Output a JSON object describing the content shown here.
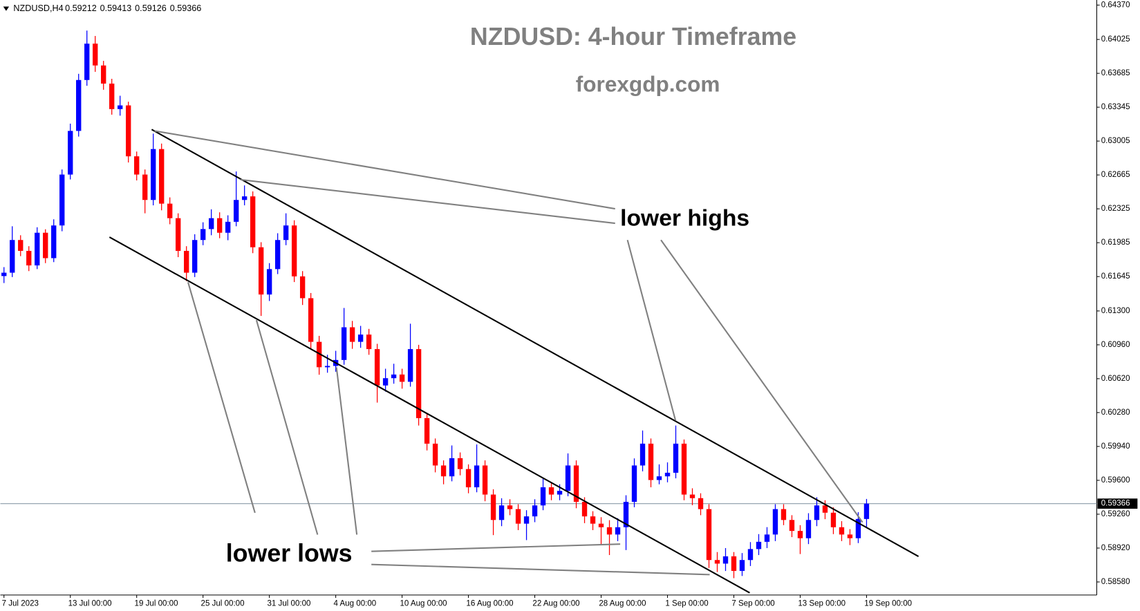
{
  "chart_data": {
    "type": "candlestick",
    "symbol": "NZDUSD,H4",
    "title": "NZDUSD: 4-hour Timeframe",
    "subtitle": "forexgdp.com",
    "annotations": [
      "lower highs",
      "lower lows"
    ],
    "categories": [
      "7 Jul 2023",
      null,
      null,
      null,
      null,
      null,
      null,
      null,
      "13 Jul 00:00",
      null,
      null,
      null,
      null,
      null,
      null,
      null,
      "19 Jul 00:00",
      null,
      null,
      null,
      null,
      null,
      null,
      null,
      "25 Jul 00:00",
      null,
      null,
      null,
      null,
      null,
      null,
      null,
      "31 Jul 00:00",
      null,
      null,
      null,
      null,
      null,
      null,
      null,
      "4 Aug 00:00",
      null,
      null,
      null,
      null,
      null,
      null,
      null,
      "10 Aug 00:00",
      null,
      null,
      null,
      null,
      null,
      null,
      null,
      "16 Aug 00:00",
      null,
      null,
      null,
      null,
      null,
      null,
      null,
      "22 Aug 00:00",
      null,
      null,
      null,
      null,
      null,
      null,
      null,
      "28 Aug 00:00",
      null,
      null,
      null,
      null,
      null,
      null,
      null,
      "1 Sep 00:00",
      null,
      null,
      null,
      null,
      null,
      null,
      null,
      "7 Sep 00:00",
      null,
      null,
      null,
      null,
      null,
      null,
      null,
      "13 Sep 00:00",
      null,
      null,
      null,
      null,
      null,
      null,
      null,
      "19 Sep 00:00"
    ],
    "open": [
      0.6165,
      0.61684,
      0.62012,
      0.61903,
      0.61757,
      0.62085,
      0.6183,
      0.62158,
      0.62669,
      0.63107,
      0.63618,
      0.63983,
      0.63764,
      0.63582,
      0.63326,
      0.63363,
      0.62852,
      0.62669,
      0.62414,
      0.62925,
      0.62377,
      0.62231,
      0.61903,
      0.61684,
      0.62012,
      0.62122,
      0.62231,
      0.62085,
      0.62195,
      0.62414,
      0.6245,
      0.61939,
      0.61465,
      0.6172,
      0.62012,
      0.62158,
      0.61647,
      0.61428,
      0.6099,
      0.60735,
      0.60748,
      0.60808,
      0.61136,
      0.6099,
      0.61063,
      0.60917,
      0.60552,
      0.60625,
      0.60662,
      0.60589,
      0.60917,
      0.60224,
      0.59968,
      0.59749,
      0.5964,
      0.59822,
      0.59713,
      0.5953,
      0.59749,
      0.59457,
      0.59202,
      0.59348,
      0.59311,
      0.59165,
      0.59238,
      0.59348,
      0.5953,
      0.59457,
      0.59494,
      0.59749,
      0.59384,
      0.59238,
      0.59165,
      0.59129,
      0.59056,
      0.59129,
      0.59384,
      0.59749,
      0.59968,
      0.59603,
      0.5964,
      0.59676,
      0.59968,
      0.59457,
      0.59421,
      0.59311,
      0.588,
      0.58764,
      0.58837,
      0.58691,
      0.588,
      0.5891,
      0.58983,
      0.59056,
      0.59311,
      0.59202,
      0.59092,
      0.59019,
      0.59202,
      0.59348,
      0.59275,
      0.59129,
      0.59056,
      0.59019,
      0.59212
    ],
    "high": [
      0.6174,
      0.6215,
      0.6206,
      0.6195,
      0.6214,
      0.6212,
      0.6222,
      0.6272,
      0.6318,
      0.6368,
      0.64114,
      0.6406,
      0.6381,
      0.6363,
      0.6346,
      0.634,
      0.629,
      0.6272,
      0.6308,
      0.6298,
      0.6244,
      0.6228,
      0.6195,
      0.6207,
      0.6219,
      0.6232,
      0.6229,
      0.6226,
      0.627,
      0.6256,
      0.625,
      0.6199,
      0.6178,
      0.6208,
      0.6228,
      0.6221,
      0.617,
      0.6148,
      0.6105,
      0.6086,
      0.609,
      0.6133,
      0.612,
      0.6115,
      0.6112,
      0.6097,
      0.6072,
      0.6077,
      0.6072,
      0.61172,
      0.6096,
      0.6027,
      0.6002,
      0.598,
      0.5995,
      0.5988,
      0.5976,
      0.5996,
      0.598,
      0.5951,
      0.5942,
      0.5941,
      0.5936,
      0.593,
      0.5941,
      0.5962,
      0.5958,
      0.5956,
      0.5987,
      0.598,
      0.5943,
      0.5929,
      0.5923,
      0.592,
      0.5922,
      0.5945,
      0.5982,
      0.601,
      0.6002,
      0.5976,
      0.5978,
      0.6015,
      0.6001,
      0.5952,
      0.5947,
      0.5936,
      0.5888,
      0.5892,
      0.5888,
      0.5887,
      0.5898,
      0.5906,
      0.5913,
      0.5936,
      0.5936,
      0.5925,
      0.5915,
      0.5927,
      0.5943,
      0.594,
      0.5933,
      0.5919,
      0.5911,
      0.5928,
      0.59413
    ],
    "low": [
      0.6158,
      0.6164,
      0.6185,
      0.617,
      0.6172,
      0.6178,
      0.6179,
      0.621,
      0.6262,
      0.6305,
      0.6356,
      0.637,
      0.6352,
      0.6327,
      0.6326,
      0.6279,
      0.6261,
      0.6228,
      0.6236,
      0.6231,
      0.6217,
      0.6184,
      0.616,
      0.6164,
      0.6196,
      0.6206,
      0.6203,
      0.6201,
      0.6215,
      0.6236,
      0.6188,
      0.6125,
      0.614,
      0.6167,
      0.6196,
      0.6159,
      0.6136,
      0.6092,
      0.6066,
      0.6068,
      0.6069,
      0.6076,
      0.6092,
      0.6093,
      0.6086,
      0.6038,
      0.6049,
      0.6057,
      0.6052,
      0.6054,
      0.6015,
      0.599,
      0.5968,
      0.5956,
      0.5959,
      0.5965,
      0.5947,
      0.5948,
      0.5939,
      0.5905,
      0.5914,
      0.5925,
      0.591,
      0.59,
      0.5918,
      0.593,
      0.594,
      0.594,
      0.5944,
      0.5932,
      0.5917,
      0.591,
      0.5895,
      0.5885,
      0.5899,
      0.589,
      0.5933,
      0.5969,
      0.5953,
      0.5956,
      0.5958,
      0.5962,
      0.594,
      0.5935,
      0.5925,
      0.5872,
      0.5868,
      0.5869,
      0.58618,
      0.5864,
      0.5874,
      0.5885,
      0.5892,
      0.5899,
      0.5915,
      0.5903,
      0.5886,
      0.5896,
      0.5914,
      0.5921,
      0.5906,
      0.5899,
      0.5895,
      0.5897,
      0.59126
    ],
    "close": [
      0.61684,
      0.62012,
      0.61903,
      0.61757,
      0.62085,
      0.6183,
      0.62158,
      0.62669,
      0.63107,
      0.63618,
      0.63983,
      0.63764,
      0.63582,
      0.63326,
      0.63363,
      0.62852,
      0.62669,
      0.62414,
      0.62925,
      0.62377,
      0.62231,
      0.61903,
      0.61684,
      0.62012,
      0.62122,
      0.62231,
      0.62085,
      0.62195,
      0.62414,
      0.6245,
      0.61939,
      0.61465,
      0.6172,
      0.62012,
      0.62158,
      0.61647,
      0.61428,
      0.6099,
      0.60735,
      0.60748,
      0.60808,
      0.61136,
      0.6099,
      0.61063,
      0.60917,
      0.60552,
      0.60625,
      0.60662,
      0.60589,
      0.60917,
      0.60224,
      0.59968,
      0.59749,
      0.5964,
      0.59822,
      0.59713,
      0.5953,
      0.59749,
      0.59457,
      0.59202,
      0.59348,
      0.59311,
      0.59165,
      0.59238,
      0.59348,
      0.5953,
      0.59457,
      0.59494,
      0.59749,
      0.59384,
      0.59238,
      0.59165,
      0.59129,
      0.59056,
      0.59129,
      0.59384,
      0.59749,
      0.59968,
      0.59603,
      0.5964,
      0.59676,
      0.59968,
      0.59457,
      0.59421,
      0.59311,
      0.588,
      0.58764,
      0.58837,
      0.58691,
      0.588,
      0.5891,
      0.58983,
      0.59056,
      0.59311,
      0.59202,
      0.59092,
      0.59019,
      0.59202,
      0.59348,
      0.59275,
      0.59129,
      0.59056,
      0.59019,
      0.59212,
      0.59366
    ],
    "up_color": "#0000ff",
    "down_color": "#ff0000",
    "last_price_line": true,
    "ylim": [
      0.58449,
      0.64421
    ],
    "yticks": [
      {
        "value": 0.6437,
        "label": "0.64370"
      },
      {
        "value": 0.64025,
        "label": "0.64025"
      },
      {
        "value": 0.63685,
        "label": "0.63685"
      },
      {
        "value": 0.63345,
        "label": "0.63345"
      },
      {
        "value": 0.63005,
        "label": "0.63005"
      },
      {
        "value": 0.62665,
        "label": "0.62665"
      },
      {
        "value": 0.62325,
        "label": "0.62325"
      },
      {
        "value": 0.61985,
        "label": "0.61985"
      },
      {
        "value": 0.61645,
        "label": "0.61645"
      },
      {
        "value": 0.613,
        "label": "0.61300"
      },
      {
        "value": 0.6096,
        "label": "0.60960"
      },
      {
        "value": 0.6062,
        "label": "0.60620"
      },
      {
        "value": 0.6028,
        "label": "0.60280"
      },
      {
        "value": 0.5994,
        "label": "0.59940"
      },
      {
        "value": 0.596,
        "label": "0.59600"
      },
      {
        "value": 0.5926,
        "label": "0.59260"
      },
      {
        "value": 0.5892,
        "label": "0.58920"
      },
      {
        "value": 0.5858,
        "label": "0.58580"
      }
    ]
  }
}
